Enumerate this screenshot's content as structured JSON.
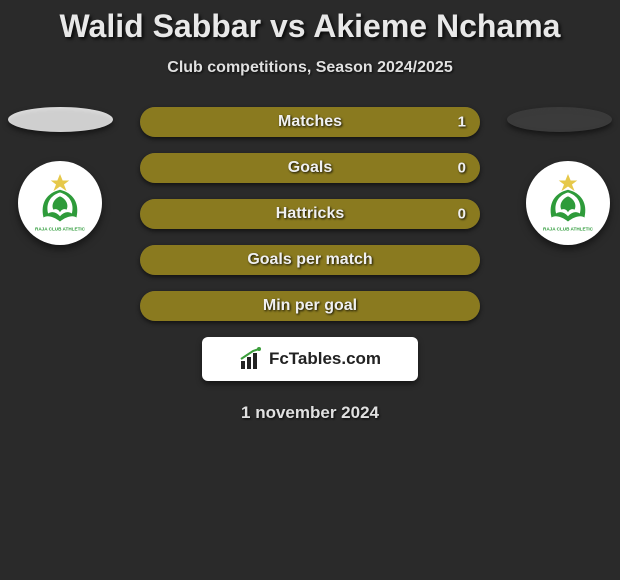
{
  "title": "Walid Sabbar vs Akieme Nchama",
  "subtitle": "Club competitions, Season 2024/2025",
  "date": "1 november 2024",
  "site_label": "FcTables.com",
  "colors": {
    "left_fill": "#8a7a1f",
    "right_fill": "#3a3a3a",
    "ellipse_left": "#cfcfcf",
    "ellipse_right": "#3b3b3b",
    "background": "#2a2a2a",
    "badge_accent": "#2e9b3a"
  },
  "badges": {
    "left_name": "club-badge-left",
    "right_name": "club-badge-right"
  },
  "stats": [
    {
      "label": "Matches",
      "left_pct": 100,
      "right_pct": 0,
      "right_value": "1"
    },
    {
      "label": "Goals",
      "left_pct": 100,
      "right_pct": 0,
      "right_value": "0"
    },
    {
      "label": "Hattricks",
      "left_pct": 100,
      "right_pct": 0,
      "right_value": "0"
    },
    {
      "label": "Goals per match",
      "left_pct": 100,
      "right_pct": 0,
      "right_value": ""
    },
    {
      "label": "Min per goal",
      "left_pct": 100,
      "right_pct": 0,
      "right_value": ""
    }
  ]
}
